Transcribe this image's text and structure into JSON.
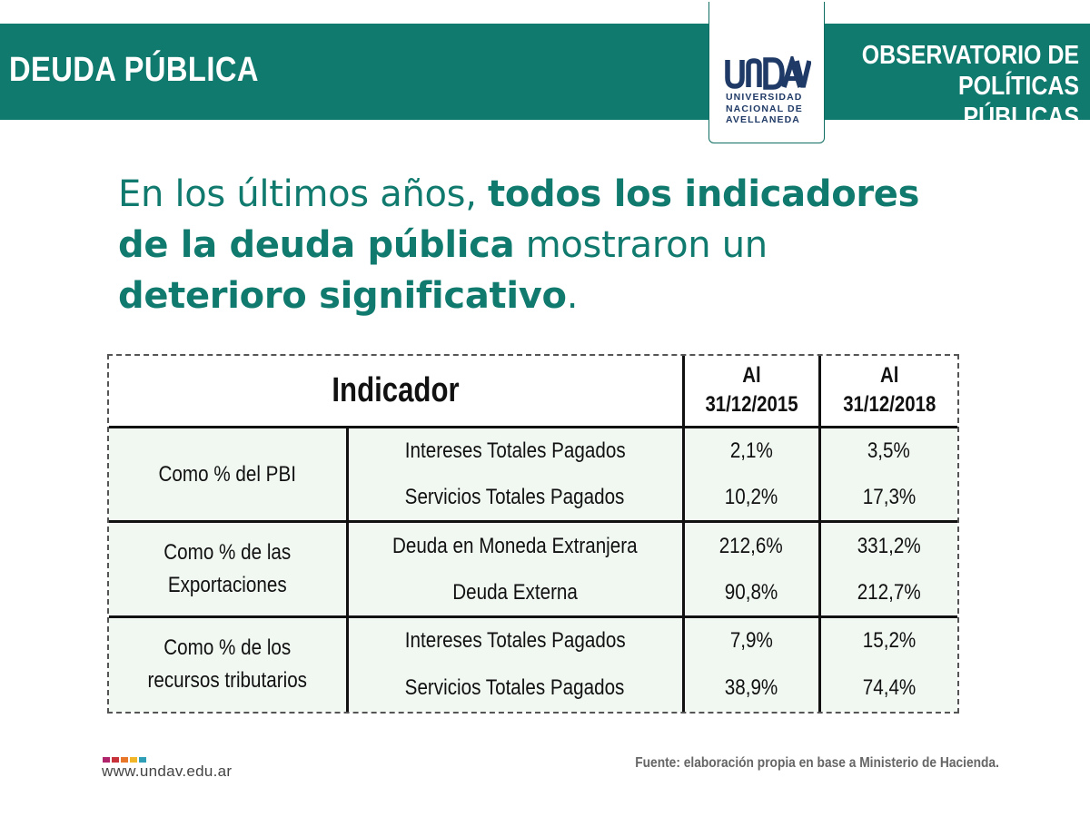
{
  "header": {
    "section_title": "DEUDA PÚBLICA",
    "observatory_line1": "OBSERVATORIO DE",
    "observatory_line2": "POLÍTICAS PÚBLICAS",
    "band_color": "#117a6e"
  },
  "logo": {
    "mark": "UNDAV",
    "line1": "UNIVERSIDAD",
    "line2": "NACIONAL DE",
    "line3": "AVELLANEDA",
    "color": "#1f3a66"
  },
  "headline": {
    "p1": "En los últimos años, ",
    "b1": "todos los indicadores",
    "b2": "de la deuda pública",
    "p2": " mostraron un",
    "b3": "deterioro significativo",
    "p3": "."
  },
  "table": {
    "header_indicator": "Indicador",
    "header_col1_line1": "Al",
    "header_col1_line2": "31/12/2015",
    "header_col2_line1": "Al",
    "header_col2_line2": "31/12/2018",
    "groups": [
      {
        "label_line1": "Como % del PBI",
        "rows": [
          {
            "indicator": "Intereses Totales Pagados",
            "v2015": "2,1%",
            "v2018": "3,5%"
          },
          {
            "indicator": "Servicios Totales Pagados",
            "v2015": "10,2%",
            "v2018": "17,3%"
          }
        ]
      },
      {
        "label_line1": "Como % de las",
        "label_line2": "Exportaciones",
        "rows": [
          {
            "indicator": "Deuda en Moneda Extranjera",
            "v2015": "212,6%",
            "v2018": "331,2%"
          },
          {
            "indicator": "Deuda Externa",
            "v2015": "90,8%",
            "v2018": "212,7%"
          }
        ]
      },
      {
        "label_line1": "Como % de los",
        "label_line2": "recursos tributarios",
        "rows": [
          {
            "indicator": "Intereses Totales Pagados",
            "v2015": "7,9%",
            "v2018": "15,2%"
          },
          {
            "indicator": "Servicios Totales Pagados",
            "v2015": "38,9%",
            "v2018": "74,4%"
          }
        ]
      }
    ]
  },
  "footer": {
    "url": "www.undav.edu.ar",
    "source": "Fuente: elaboración propia en base a Ministerio de Hacienda.",
    "dot_colors": [
      "#b0246b",
      "#c8323a",
      "#e8772a",
      "#f2b728",
      "#2f9fb8"
    ]
  }
}
